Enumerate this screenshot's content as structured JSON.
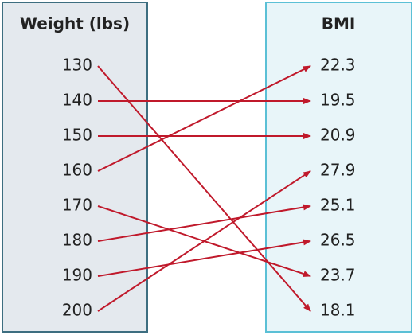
{
  "domain": {
    "title": "Weight (lbs)",
    "items": [
      130,
      140,
      150,
      160,
      170,
      180,
      190,
      200
    ]
  },
  "range": {
    "title": "BMI",
    "items": [
      22.3,
      19.5,
      20.9,
      27.9,
      25.1,
      26.5,
      23.7,
      18.1
    ]
  },
  "arrows": [
    {
      "from": 0,
      "to": 7
    },
    {
      "from": 1,
      "to": 1
    },
    {
      "from": 2,
      "to": 2
    },
    {
      "from": 3,
      "to": 0
    },
    {
      "from": 4,
      "to": 6
    },
    {
      "from": 5,
      "to": 4
    },
    {
      "from": 6,
      "to": 5
    },
    {
      "from": 7,
      "to": 3
    }
  ]
}
